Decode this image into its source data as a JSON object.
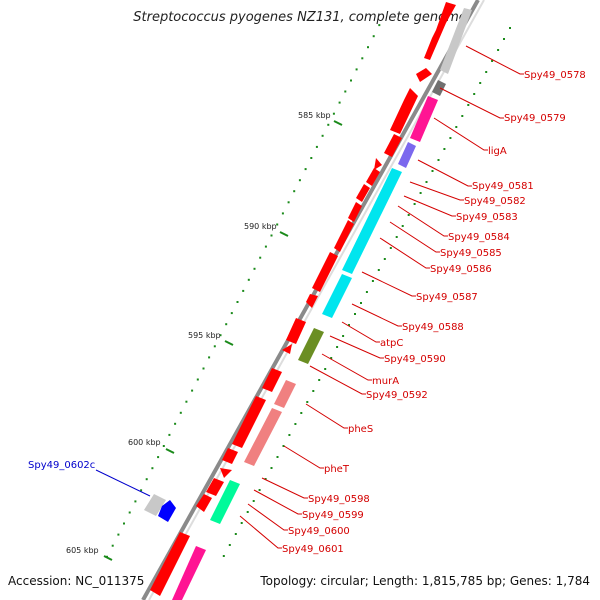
{
  "title": "Streptococcus pyogenes NZ131, complete genome",
  "footer": {
    "accession": "Accession: NC_011375",
    "summary": "Topology: circular; Length: 1,815,785 bp; Genes: 1,784"
  },
  "colors": {
    "forward": "#ff0000",
    "backbone": "#8a8a8a",
    "label_red": "#d40000",
    "label_blue": "#0000cc",
    "tick": "#1a8a1a"
  },
  "kbp_ticks": [
    "585 kbp",
    "590 kbp",
    "595 kbp",
    "600 kbp",
    "605 kbp"
  ],
  "genes": [
    {
      "id": "g0578",
      "name": "Spy49_0578",
      "color": "#c8c8c8",
      "label_color": "#d40000"
    },
    {
      "id": "g0579",
      "name": "Spy49_0579",
      "color": "#707070",
      "label_color": "#d40000"
    },
    {
      "id": "gligA",
      "name": "ligA",
      "color": "#ff1493",
      "label_color": "#d40000"
    },
    {
      "id": "g0581",
      "name": "Spy49_0581",
      "color": "#7b68ee",
      "label_color": "#d40000"
    },
    {
      "id": "g0582",
      "name": "Spy49_0582",
      "color": "#00e5ee",
      "label_color": "#d40000"
    },
    {
      "id": "g0583",
      "name": "Spy49_0583",
      "color": "#00e5ee",
      "label_color": "#d40000"
    },
    {
      "id": "g0584",
      "name": "Spy49_0584",
      "color": "#00e5ee",
      "label_color": "#d40000"
    },
    {
      "id": "g0585",
      "name": "Spy49_0585",
      "color": "#00e5ee",
      "label_color": "#d40000"
    },
    {
      "id": "g0586",
      "name": "Spy49_0586",
      "color": "#00e5ee",
      "label_color": "#d40000"
    },
    {
      "id": "g0587",
      "name": "Spy49_0587",
      "color": "#00e5ee",
      "label_color": "#d40000"
    },
    {
      "id": "g0588",
      "name": "Spy49_0588",
      "color": "#ff0000",
      "label_color": "#d40000"
    },
    {
      "id": "gatpC",
      "name": "atpC",
      "color": "#ff0000",
      "label_color": "#d40000"
    },
    {
      "id": "g0590",
      "name": "Spy49_0590",
      "color": "#6b8e23",
      "label_color": "#d40000"
    },
    {
      "id": "gmurA",
      "name": "murA",
      "color": "#ff0000",
      "label_color": "#d40000"
    },
    {
      "id": "g0592",
      "name": "Spy49_0592",
      "color": "#ff0000",
      "label_color": "#d40000"
    },
    {
      "id": "gpheS",
      "name": "pheS",
      "color": "#f08080",
      "label_color": "#d40000"
    },
    {
      "id": "gpheT",
      "name": "pheT",
      "color": "#f08080",
      "label_color": "#d40000"
    },
    {
      "id": "g0598",
      "name": "Spy49_0598",
      "color": "#ff0000",
      "label_color": "#d40000"
    },
    {
      "id": "g0599",
      "name": "Spy49_0599",
      "color": "#ff0000",
      "label_color": "#d40000"
    },
    {
      "id": "g0600",
      "name": "Spy49_0600",
      "color": "#00fa9a",
      "label_color": "#d40000"
    },
    {
      "id": "g0601",
      "name": "Spy49_0601",
      "color": "#ff0000",
      "label_color": "#d40000"
    },
    {
      "id": "g0602c",
      "name": "Spy49_0602c",
      "color": "#0000ff",
      "label_color": "#0000cc"
    }
  ]
}
